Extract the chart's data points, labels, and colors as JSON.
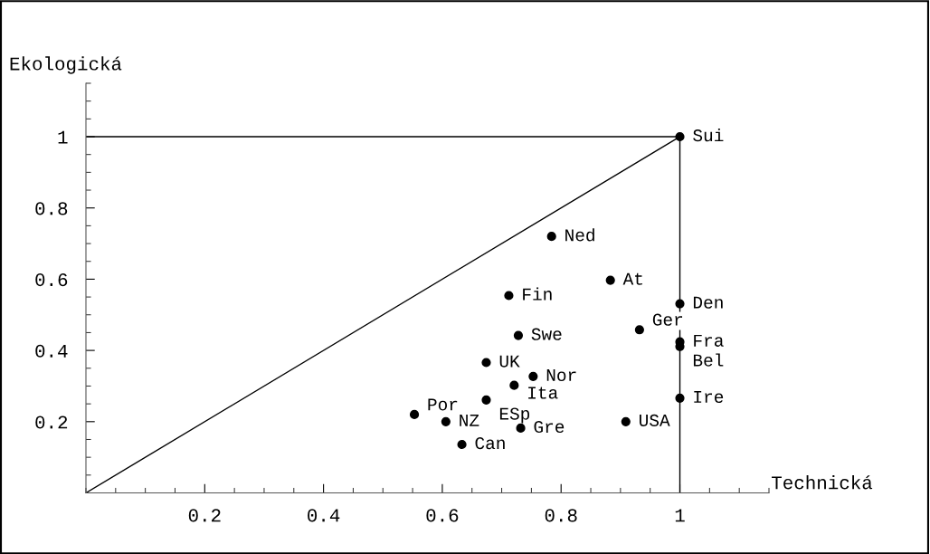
{
  "chart_data": {
    "type": "scatter",
    "xlabel": "Technická",
    "ylabel": "Ekologická",
    "xlim": [
      0,
      1.15
    ],
    "ylim": [
      0,
      1.15
    ],
    "xticks": [
      0.2,
      0.4,
      0.6,
      0.8,
      1
    ],
    "yticks": [
      0.2,
      0.4,
      0.6,
      0.8,
      1
    ],
    "grid": false,
    "legend": false,
    "marker": "circle",
    "series": [
      {
        "color": "#000000",
        "x": [
          1,
          0.784,
          0.883,
          0.712,
          1,
          0.728,
          0.932,
          1,
          1,
          0.674,
          0.753,
          0.721,
          0.674,
          1,
          0.553,
          0.606,
          0.909,
          0.732,
          0.633
        ],
        "values": [
          1,
          0.72,
          0.597,
          0.554,
          0.531,
          0.442,
          0.458,
          0.424,
          0.411,
          0.366,
          0.327,
          0.302,
          0.261,
          0.266,
          0.22,
          0.2,
          0.2,
          0.182,
          0.136
        ]
      },
      {
        "type": "line",
        "color": "#000000",
        "marker": "none",
        "x": [
          0,
          1
        ],
        "values": [
          0,
          1
        ]
      },
      {
        "type": "line",
        "color": "#000000",
        "marker": "none",
        "x": [
          0,
          1,
          1
        ],
        "values": [
          1,
          1,
          0
        ]
      }
    ],
    "annotations": [
      {
        "text": "Sui",
        "x": 1,
        "y": 1
      },
      {
        "text": "Ned",
        "x": 0.784,
        "y": 0.72
      },
      {
        "text": "At",
        "x": 0.883,
        "y": 0.597
      },
      {
        "text": "Fin",
        "x": 0.712,
        "y": 0.554
      },
      {
        "text": "Den",
        "x": 1,
        "y": 0.531
      },
      {
        "text": "Swe",
        "x": 0.728,
        "y": 0.442
      },
      {
        "text": "Ger",
        "x": 0.932,
        "y": 0.458
      },
      {
        "text": "Fra",
        "x": 1,
        "y": 0.424
      },
      {
        "text": "Bel",
        "x": 1,
        "y": 0.411
      },
      {
        "text": "UK",
        "x": 0.674,
        "y": 0.366
      },
      {
        "text": "Nor",
        "x": 0.753,
        "y": 0.327
      },
      {
        "text": "Ita",
        "x": 0.721,
        "y": 0.302
      },
      {
        "text": "ESp",
        "x": 0.674,
        "y": 0.261
      },
      {
        "text": "Ire",
        "x": 1,
        "y": 0.266
      },
      {
        "text": "Por",
        "x": 0.553,
        "y": 0.22
      },
      {
        "text": "NZ",
        "x": 0.606,
        "y": 0.2
      },
      {
        "text": "USA",
        "x": 0.909,
        "y": 0.2
      },
      {
        "text": "Gre",
        "x": 0.732,
        "y": 0.182
      },
      {
        "text": "Can",
        "x": 0.633,
        "y": 0.136
      }
    ]
  }
}
